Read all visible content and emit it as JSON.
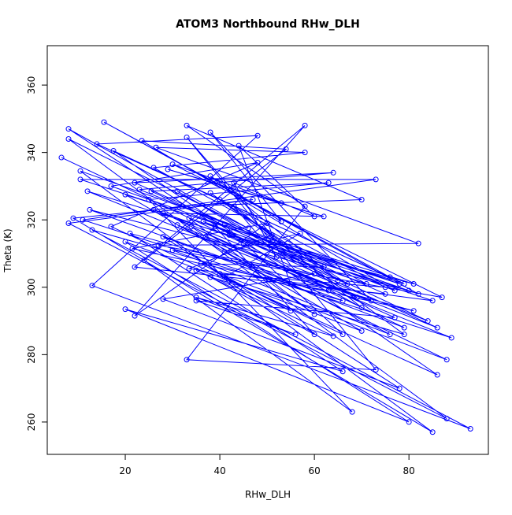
{
  "chart_data": {
    "type": "line",
    "title": "ATOM3 Northbound RHw_DLH",
    "x_label": "RHw_DLH",
    "y_label": "Theta (K)",
    "x": [
      6.5,
      45,
      8,
      46,
      8,
      88,
      8,
      47,
      9,
      85,
      10.5,
      78,
      10.5,
      73,
      11,
      89,
      12,
      80,
      12.5,
      66,
      13,
      93,
      13,
      48,
      14,
      76,
      15.5,
      82,
      17,
      48,
      17,
      86,
      17.5,
      79,
      20,
      70,
      20,
      80,
      20,
      66,
      21,
      81,
      21.5,
      50,
      22,
      58,
      22,
      75,
      22,
      64,
      23,
      77,
      23.5,
      54,
      24,
      68,
      25,
      63,
      25.5,
      84,
      26,
      71,
      26,
      58,
      26.5,
      82,
      27,
      60,
      28,
      78,
      28,
      79,
      28,
      62,
      29,
      53,
      30,
      87,
      30,
      76,
      31,
      69,
      31,
      57,
      32,
      70,
      33,
      58,
      33,
      73,
      33,
      51,
      33.5,
      85,
      33.5,
      60,
      34,
      77,
      35,
      56,
      35,
      64,
      35,
      55,
      36,
      62,
      36.5,
      86,
      37,
      72,
      38,
      53,
      38,
      65,
      38,
      79,
      38,
      60,
      39,
      67,
      40,
      75,
      40,
      88,
      41,
      57,
      41,
      66,
      41,
      81,
      42,
      70,
      43,
      52,
      43,
      60,
      44,
      55,
      63
    ],
    "series": [
      {
        "name": "Theta",
        "color": "#0000ff",
        "values": [
          338.5,
          313,
          347,
          317.5,
          344,
          261,
          319,
          326,
          320.5,
          257,
          334.5,
          301,
          332,
          332,
          320,
          285,
          328.5,
          299,
          323,
          296,
          317,
          258,
          300.5,
          345,
          342.5,
          303,
          349,
          298,
          330,
          337,
          318,
          274,
          340.5,
          301,
          327.5,
          287,
          313.5,
          260,
          293.5,
          275,
          316,
          293,
          311.5,
          319,
          291.5,
          348,
          306,
          298,
          331,
          334,
          329,
          299,
          343.5,
          341,
          308,
          263,
          326,
          331,
          328.5,
          290,
          323,
          301,
          335.5,
          340,
          341.5,
          313,
          312.5,
          304,
          296.5,
          270,
          315,
          288,
          322,
          321,
          335,
          325,
          336.5,
          297,
          311,
          286,
          318.5,
          297,
          328.5,
          308,
          324,
          326,
          348,
          324,
          278.5,
          275.5,
          344.5,
          315.5,
          305.5,
          296,
          320.5,
          292,
          318,
          291,
          296,
          286,
          297,
          285.5,
          305,
          293,
          307,
          306,
          319.5,
          288,
          315,
          296,
          346,
          319.5,
          333,
          302,
          328,
          286,
          303,
          286,
          318,
          301,
          326,
          300,
          304,
          278.5,
          310.5,
          316,
          303,
          286,
          318.5,
          301,
          315.5,
          294,
          324,
          309,
          331,
          321,
          342,
          301,
          299
        ]
      }
    ],
    "xlim": [
      3.5,
      96.8
    ],
    "ylim": [
      250.4,
      371.7
    ],
    "xticks": [
      20,
      40,
      60,
      80
    ],
    "yticks": [
      260,
      280,
      300,
      320,
      340,
      360
    ]
  }
}
